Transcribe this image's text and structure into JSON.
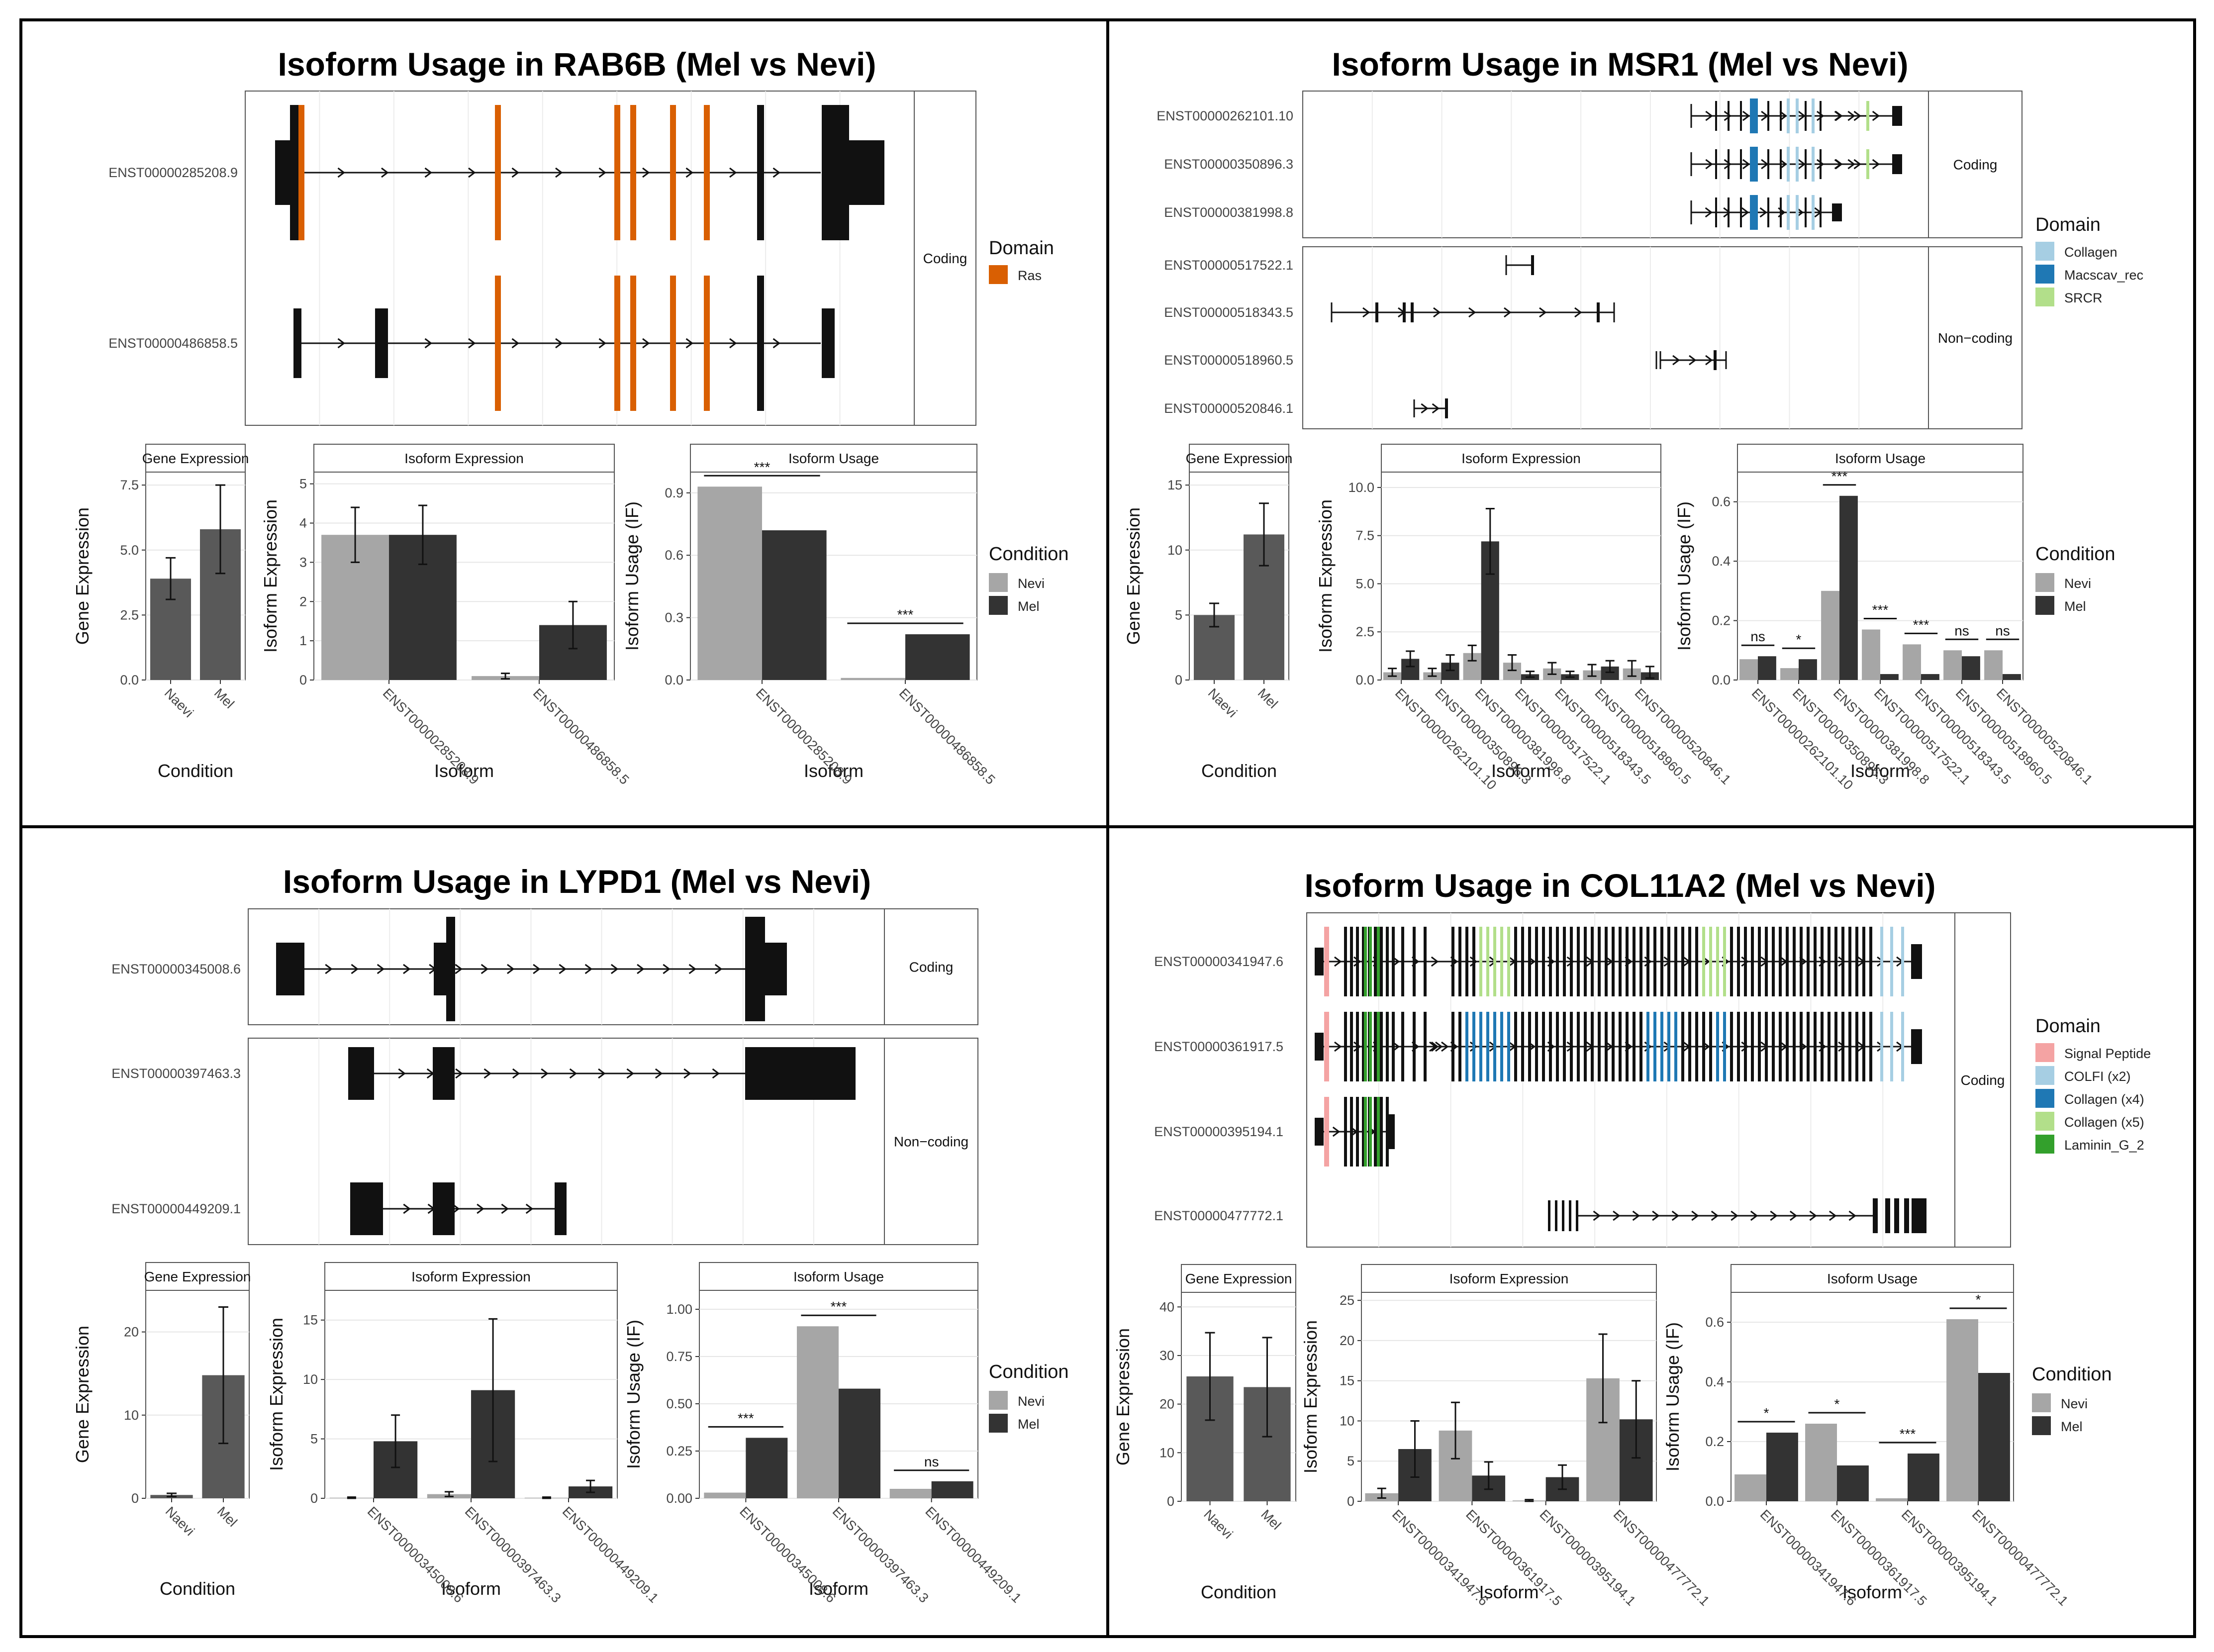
{
  "colors": {
    "ras": "#d95f02",
    "collagen_msr1": "#a6cee3",
    "macscav": "#1f78b4",
    "srcr": "#b2df8a",
    "signal_peptide": "#f4a3a3",
    "colfi": "#a6cee3",
    "collagen_x4": "#1f78b4",
    "collagen_x5": "#b2df8a",
    "laminin": "#33a02c",
    "nevi": "#a6a6a6",
    "mel": "#333333",
    "gene_bar": "#595959",
    "exon": "#111111"
  },
  "chart_data": [
    {
      "type": "isoform_switch_panel",
      "title": "Isoform Usage in RAB6B (Mel vs Nevi)",
      "structure": {
        "groups": [
          {
            "label": "Coding",
            "isoforms": [
              "ENST00000285208.9",
              "ENST00000486858.5"
            ]
          }
        ],
        "legend_title": "Domain",
        "domains": [
          {
            "name": "Ras",
            "color": "#d95f02"
          }
        ]
      },
      "gene_expression": {
        "strip": "Gene Expression",
        "ylabel": "Gene Expression",
        "xlabel": "Condition",
        "categories": [
          "Naevi",
          "Mel"
        ],
        "values": [
          3.9,
          5.8
        ],
        "err": [
          0.8,
          1.7
        ],
        "ylim": [
          0,
          8
        ],
        "ticks": [
          0,
          2.5,
          5,
          7.5
        ],
        "tick_labels": [
          "0.0",
          "2.5",
          "5.0",
          "7.5"
        ]
      },
      "isoform_expression": {
        "strip": "Isoform Expression",
        "ylabel": "Isoform Expression",
        "xlabel": "Isoform",
        "categories": [
          "ENST00000285208.9",
          "ENST00000486858.5"
        ],
        "nevi": [
          3.7,
          0.1
        ],
        "mel": [
          3.7,
          1.4
        ],
        "nevi_err": [
          0.7,
          0.07
        ],
        "mel_err": [
          0.75,
          0.6
        ],
        "ylim": [
          0,
          5.3
        ],
        "ticks": [
          0,
          1,
          2,
          3,
          4,
          5
        ],
        "tick_labels": [
          "0",
          "1",
          "2",
          "3",
          "4",
          "5"
        ]
      },
      "isoform_usage": {
        "strip": "Isoform Usage",
        "ylabel": "Isoform Usage (IF)",
        "xlabel": "Isoform",
        "categories": [
          "ENST00000285208.9",
          "ENST00000486858.5"
        ],
        "nevi": [
          0.93,
          0.01
        ],
        "mel": [
          0.72,
          0.22
        ],
        "sig": [
          "***",
          "***"
        ],
        "ylim": [
          0,
          1.0
        ],
        "ticks": [
          0,
          0.3,
          0.6,
          0.9
        ],
        "tick_labels": [
          "0.0",
          "0.3",
          "0.6",
          "0.9"
        ]
      },
      "legend": {
        "title": "Condition",
        "items": [
          "Nevi",
          "Mel"
        ]
      }
    },
    {
      "type": "isoform_switch_panel",
      "title": "Isoform Usage in MSR1 (Mel vs Nevi)",
      "structure": {
        "groups": [
          {
            "label": "Coding",
            "isoforms": [
              "ENST00000262101.10",
              "ENST00000350896.3",
              "ENST00000381998.8"
            ]
          },
          {
            "label": "Non−coding",
            "isoforms": [
              "ENST00000517522.1",
              "ENST00000518343.5",
              "ENST00000518960.5",
              "ENST00000520846.1"
            ]
          }
        ],
        "legend_title": "Domain",
        "domains": [
          {
            "name": "Collagen",
            "color": "#a6cee3"
          },
          {
            "name": "Macscav_rec",
            "color": "#1f78b4"
          },
          {
            "name": "SRCR",
            "color": "#b2df8a"
          }
        ]
      },
      "gene_expression": {
        "strip": "Gene Expression",
        "ylabel": "Gene Expression",
        "xlabel": "Condition",
        "categories": [
          "Naevi",
          "Mel"
        ],
        "values": [
          5.0,
          11.2
        ],
        "err": [
          0.9,
          2.4
        ],
        "ylim": [
          0,
          16
        ],
        "ticks": [
          0,
          5,
          10,
          15
        ],
        "tick_labels": [
          "0",
          "5",
          "10",
          "15"
        ]
      },
      "isoform_expression": {
        "strip": "Isoform Expression",
        "ylabel": "Isoform Expression",
        "xlabel": "Isoform",
        "categories": [
          "ENST00000262101.10",
          "ENST00000350896.3",
          "ENST00000381998.8",
          "ENST00000517522.1",
          "ENST00000518343.5",
          "ENST00000518960.5",
          "ENST00000520846.1"
        ],
        "nevi": [
          0.4,
          0.4,
          1.4,
          0.9,
          0.6,
          0.5,
          0.6
        ],
        "mel": [
          1.1,
          0.9,
          7.2,
          0.3,
          0.3,
          0.7,
          0.4
        ],
        "nevi_err": [
          0.2,
          0.2,
          0.4,
          0.4,
          0.3,
          0.3,
          0.4
        ],
        "mel_err": [
          0.4,
          0.4,
          1.7,
          0.15,
          0.15,
          0.3,
          0.3
        ],
        "ylim": [
          0,
          10.8
        ],
        "ticks": [
          0,
          2.5,
          5,
          7.5,
          10
        ],
        "tick_labels": [
          "0.0",
          "2.5",
          "5.0",
          "7.5",
          "10.0"
        ]
      },
      "isoform_usage": {
        "strip": "Isoform Usage",
        "ylabel": "Isoform Usage (IF)",
        "xlabel": "Isoform",
        "categories": [
          "ENST00000262101.10",
          "ENST00000350896.3",
          "ENST00000381998.8",
          "ENST00000517522.1",
          "ENST00000518343.5",
          "ENST00000518960.5",
          "ENST00000520846.1"
        ],
        "nevi": [
          0.07,
          0.04,
          0.3,
          0.17,
          0.12,
          0.1,
          0.1
        ],
        "mel": [
          0.08,
          0.07,
          0.62,
          0.02,
          0.02,
          0.08,
          0.02
        ],
        "sig": [
          "ns",
          "*",
          "***",
          "***",
          "***",
          "ns",
          "ns"
        ],
        "ylim": [
          0,
          0.7
        ],
        "ticks": [
          0,
          0.2,
          0.4,
          0.6
        ],
        "tick_labels": [
          "0.0",
          "0.2",
          "0.4",
          "0.6"
        ]
      },
      "legend": {
        "title": "Condition",
        "items": [
          "Nevi",
          "Mel"
        ]
      }
    },
    {
      "type": "isoform_switch_panel",
      "title": "Isoform Usage in LYPD1 (Mel vs Nevi)",
      "structure": {
        "groups": [
          {
            "label": "Coding",
            "isoforms": [
              "ENST00000345008.6"
            ]
          },
          {
            "label": "Non−coding",
            "isoforms": [
              "ENST00000397463.3",
              "ENST00000449209.1"
            ]
          }
        ],
        "legend_title": "",
        "domains": []
      },
      "gene_expression": {
        "strip": "Gene Expression",
        "ylabel": "Gene Expression",
        "xlabel": "Condition",
        "categories": [
          "Naevi",
          "Mel"
        ],
        "values": [
          0.4,
          14.8
        ],
        "err": [
          0.2,
          8.2
        ],
        "ylim": [
          0,
          25
        ],
        "ticks": [
          0,
          10,
          20
        ],
        "tick_labels": [
          "0",
          "10",
          "20"
        ]
      },
      "isoform_expression": {
        "strip": "Isoform Expression",
        "ylabel": "Isoform Expression",
        "xlabel": "Isoform",
        "categories": [
          "ENST00000345008.6",
          "ENST00000397463.3",
          "ENST00000449209.1"
        ],
        "nevi": [
          0.05,
          0.35,
          0.05
        ],
        "mel": [
          4.8,
          9.1,
          1.0
        ],
        "nevi_err": [
          0.05,
          0.2,
          0.05
        ],
        "mel_err": [
          2.2,
          6.0,
          0.5
        ],
        "ylim": [
          0,
          17.5
        ],
        "ticks": [
          0,
          5,
          10,
          15
        ],
        "tick_labels": [
          "0",
          "5",
          "10",
          "15"
        ]
      },
      "isoform_usage": {
        "strip": "Isoform Usage",
        "ylabel": "Isoform Usage (IF)",
        "xlabel": "Isoform",
        "categories": [
          "ENST00000345008.6",
          "ENST00000397463.3",
          "ENST00000449209.1"
        ],
        "nevi": [
          0.03,
          0.91,
          0.05
        ],
        "mel": [
          0.32,
          0.58,
          0.09
        ],
        "sig": [
          "***",
          "***",
          "ns"
        ],
        "ylim": [
          0,
          1.1
        ],
        "ticks": [
          0,
          0.25,
          0.5,
          0.75,
          1.0
        ],
        "tick_labels": [
          "0.00",
          "0.25",
          "0.50",
          "0.75",
          "1.00"
        ]
      },
      "legend": {
        "title": "Condition",
        "items": [
          "Nevi",
          "Mel"
        ]
      }
    },
    {
      "type": "isoform_switch_panel",
      "title": "Isoform Usage in COL11A2 (Mel vs Nevi)",
      "structure": {
        "groups": [
          {
            "label": "Coding",
            "isoforms": [
              "ENST00000341947.6",
              "ENST00000361917.5",
              "ENST00000395194.1",
              "ENST00000477772.1"
            ]
          }
        ],
        "legend_title": "Domain",
        "domains": [
          {
            "name": "Signal Peptide",
            "color": "#f4a3a3"
          },
          {
            "name": "COLFI (x2)",
            "color": "#a6cee3"
          },
          {
            "name": "Collagen (x4)",
            "color": "#1f78b4"
          },
          {
            "name": "Collagen (x5)",
            "color": "#b2df8a"
          },
          {
            "name": "Laminin_G_2",
            "color": "#33a02c"
          }
        ]
      },
      "gene_expression": {
        "strip": "Gene Expression",
        "ylabel": "Gene Expression",
        "xlabel": "Condition",
        "categories": [
          "Naevi",
          "Mel"
        ],
        "values": [
          25.7,
          23.5
        ],
        "err": [
          9.0,
          10.2
        ],
        "ylim": [
          0,
          43
        ],
        "ticks": [
          0,
          10,
          20,
          30,
          40
        ],
        "tick_labels": [
          "0",
          "10",
          "20",
          "30",
          "40"
        ]
      },
      "isoform_expression": {
        "strip": "Isoform Expression",
        "ylabel": "Isoform Expression",
        "xlabel": "Isoform",
        "categories": [
          "ENST00000341947.6",
          "ENST00000361917.5",
          "ENST00000395194.1",
          "ENST00000477772.1"
        ],
        "nevi": [
          1.0,
          8.8,
          0.1,
          15.3
        ],
        "mel": [
          6.5,
          3.2,
          3.0,
          10.2
        ],
        "nevi_err": [
          0.6,
          3.5,
          0.1,
          5.5
        ],
        "mel_err": [
          3.5,
          1.7,
          1.5,
          4.8
        ],
        "ylim": [
          0,
          26
        ],
        "ticks": [
          0,
          5,
          10,
          15,
          20,
          25
        ],
        "tick_labels": [
          "0",
          "5",
          "10",
          "15",
          "20",
          "25"
        ]
      },
      "isoform_usage": {
        "strip": "Isoform Usage",
        "ylabel": "Isoform Usage (IF)",
        "xlabel": "Isoform",
        "categories": [
          "ENST00000341947.6",
          "ENST00000361917.5",
          "ENST00000395194.1",
          "ENST00000477772.1"
        ],
        "nevi": [
          0.09,
          0.26,
          0.01,
          0.61
        ],
        "mel": [
          0.23,
          0.12,
          0.16,
          0.43
        ],
        "sig": [
          "*",
          "*",
          "***",
          "*"
        ],
        "ylim": [
          0,
          0.7
        ],
        "ticks": [
          0,
          0.2,
          0.4,
          0.6
        ],
        "tick_labels": [
          "0.0",
          "0.2",
          "0.4",
          "0.6"
        ]
      },
      "legend": {
        "title": "Condition",
        "items": [
          "Nevi",
          "Mel"
        ]
      }
    }
  ]
}
